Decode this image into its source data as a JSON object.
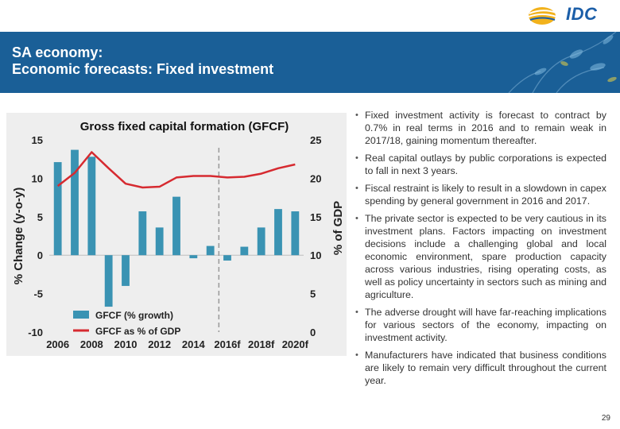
{
  "header": {
    "logo_text": "IDC",
    "title_line1": "SA economy:",
    "title_line2": "Economic forecasts: Fixed investment"
  },
  "colors": {
    "banner": "#1a5f97",
    "bar": "#3a93b3",
    "line": "#d62a30",
    "dashed": "#999999"
  },
  "chart_data": {
    "type": "bar",
    "title": "Gross fixed capital formation (GFCF)",
    "ylabel": "% Change (y-o-y)",
    "y2label": "% of GDP",
    "ylim": [
      -10,
      15
    ],
    "y2lim": [
      0,
      25
    ],
    "y_ticks": [
      -10,
      -5,
      0,
      5,
      10,
      15
    ],
    "y2_ticks": [
      0,
      5,
      10,
      15,
      20,
      25
    ],
    "x_labels": [
      "2006",
      "2008",
      "2010",
      "2012",
      "2014",
      "2016f",
      "2018f",
      "2020f"
    ],
    "categories": [
      "2006",
      "2007",
      "2008",
      "2009",
      "2010",
      "2011",
      "2012",
      "2013",
      "2014",
      "2015",
      "2016f",
      "2017f",
      "2018f",
      "2019f",
      "2020f"
    ],
    "forecast_start": "2016f",
    "series": [
      {
        "name": "GFCF (% growth)",
        "type": "bar",
        "axis": "left",
        "values": [
          12.1,
          13.7,
          12.8,
          -6.7,
          -4.0,
          5.7,
          3.6,
          7.6,
          -0.4,
          1.2,
          -0.7,
          1.1,
          3.6,
          6.0,
          5.7
        ]
      },
      {
        "name": "GFCF as % of GDP",
        "type": "line",
        "axis": "right",
        "values": [
          19.0,
          20.7,
          23.4,
          21.3,
          19.3,
          18.8,
          18.9,
          20.1,
          20.3,
          20.3,
          20.1,
          20.2,
          20.6,
          21.3,
          21.8
        ]
      }
    ]
  },
  "bullets": [
    "Fixed investment activity is forecast to contract by 0.7% in real terms in 2016 and to remain weak in 2017/18, gaining momentum thereafter.",
    "Real capital outlays by public corporations is expected to fall in next 3 years.",
    "Fiscal restraint is likely to result in a slowdown in capex spending by general government in 2016 and 2017.",
    "The private sector is expected to be very cautious in its investment plans. Factors impacting on investment decisions include a challenging global and local economic environment, spare production capacity across various industries, rising operating costs, as well as policy uncertainty in sectors such as mining and agriculture.",
    "The adverse drought will have far-reaching implications for various sectors of the economy, impacting on investment activity.",
    "Manufacturers have indicated that business conditions are likely to remain very difficult throughout the current year."
  ],
  "bullet_marker": "•",
  "footer": {
    "page_number": "29"
  }
}
